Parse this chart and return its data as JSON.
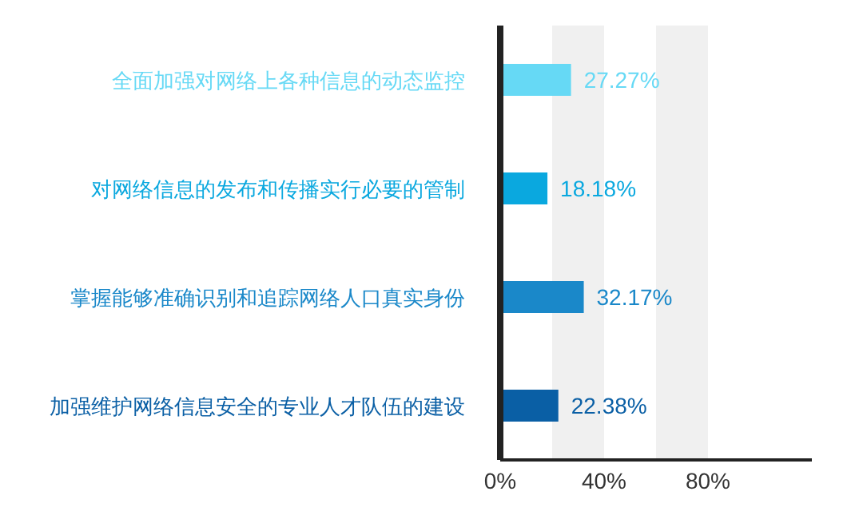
{
  "chart_data": {
    "type": "bar",
    "orientation": "horizontal",
    "categories": [
      "全面加强对网络上各种信息的动态监控",
      "对网络信息的发布和传播实行必要的管制",
      "掌握能够准确识别和追踪网络人口真实身份",
      "加强维护网络信息安全的专业人才队伍的建设"
    ],
    "values": [
      27.27,
      18.18,
      32.17,
      22.38
    ],
    "colors": [
      "#66d9f5",
      "#0aa8df",
      "#1a88c9",
      "#0a5fa5"
    ],
    "value_labels": [
      "27.27%",
      "18.18%",
      "32.17%",
      "22.38%"
    ],
    "xlim": [
      0,
      120
    ],
    "xticks": [
      {
        "value": 0,
        "label": "0%"
      },
      {
        "value": 40,
        "label": "40%"
      },
      {
        "value": 80,
        "label": "80%"
      }
    ],
    "bands": [
      {
        "axis": "x",
        "from": 20,
        "to": 40,
        "color": "#f0f0f0"
      },
      {
        "axis": "x",
        "from": 60,
        "to": 80,
        "color": "#f0f0f0"
      }
    ],
    "grid": false
  }
}
